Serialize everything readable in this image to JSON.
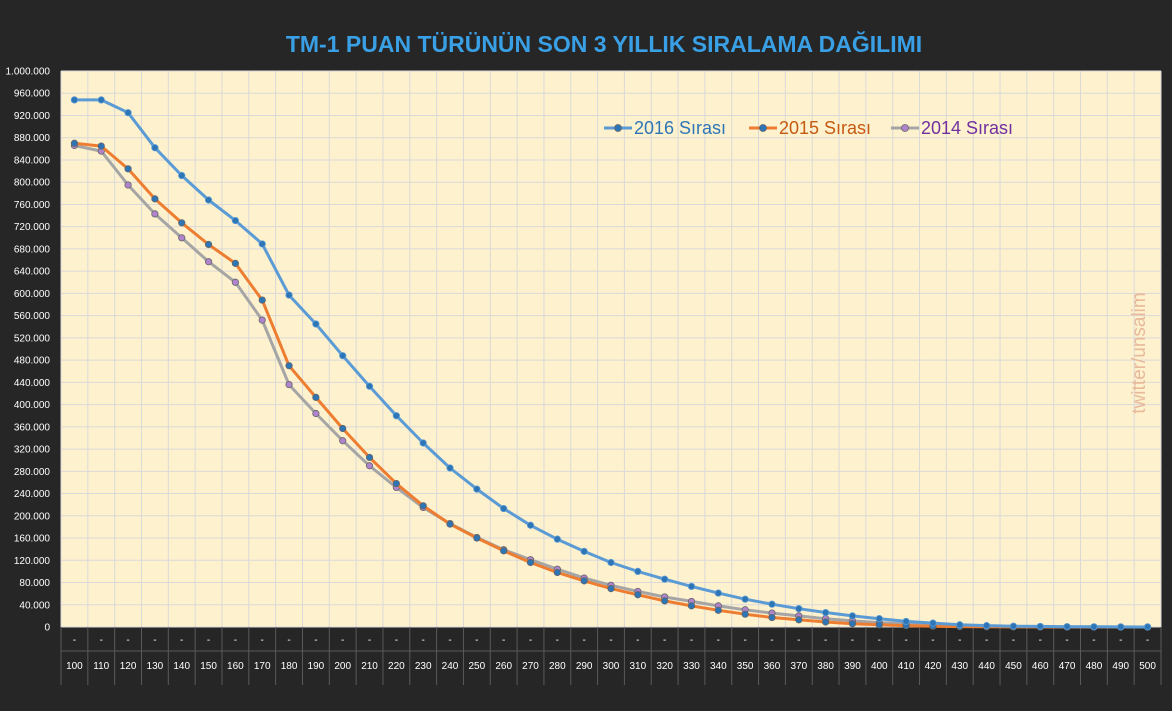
{
  "chart_data": {
    "type": "line",
    "title": "TM-1 PUAN TÜRÜNÜN SON 3 YILLIK SIRALAMA DAĞILIMI",
    "watermark": "twitter/unsalim",
    "x_placeholder": "-",
    "categories": [
      "100",
      "110",
      "120",
      "130",
      "140",
      "150",
      "160",
      "170",
      "180",
      "190",
      "200",
      "210",
      "220",
      "230",
      "240",
      "250",
      "260",
      "270",
      "280",
      "290",
      "300",
      "310",
      "320",
      "330",
      "340",
      "350",
      "360",
      "370",
      "380",
      "390",
      "400",
      "410",
      "420",
      "430",
      "440",
      "450",
      "460",
      "470",
      "480",
      "490",
      "500"
    ],
    "ylim": [
      0,
      1000000
    ],
    "ytick_step": 40000,
    "y_ticks": [
      "0",
      "40.000",
      "80.000",
      "120.000",
      "160.000",
      "200.000",
      "240.000",
      "280.000",
      "320.000",
      "360.000",
      "400.000",
      "440.000",
      "480.000",
      "520.000",
      "560.000",
      "600.000",
      "640.000",
      "680.000",
      "720.000",
      "760.000",
      "800.000",
      "840.000",
      "880.000",
      "920.000",
      "960.000",
      "1.000.000"
    ],
    "grid": true,
    "legend_position": "top-right",
    "series": [
      {
        "name": "2016 Sırası",
        "color": "#5B9BD5",
        "marker_color": "#2E75B6",
        "label_color": "#2E75B6",
        "values": [
          948000,
          948000,
          925000,
          862000,
          812000,
          768000,
          731000,
          689000,
          597000,
          545000,
          488000,
          433000,
          380000,
          331000,
          286000,
          248000,
          213000,
          183000,
          158000,
          136000,
          116000,
          100000,
          86000,
          73000,
          61000,
          50000,
          41000,
          33000,
          26000,
          20000,
          15000,
          10000,
          7000,
          4000,
          2500,
          1500,
          1000,
          600,
          300,
          150,
          50
        ]
      },
      {
        "name": "2015 Sırası",
        "color": "#ED7D31",
        "marker_color": "#2E75B6",
        "label_color": "#C55A11",
        "values": [
          870000,
          865000,
          824000,
          770000,
          727000,
          688000,
          654000,
          588000,
          470000,
          413000,
          357000,
          305000,
          258000,
          218000,
          185000,
          160000,
          137000,
          116000,
          98000,
          83000,
          69000,
          58000,
          47000,
          38000,
          30000,
          23000,
          17000,
          13000,
          9000,
          6000,
          4000,
          2500,
          1500,
          800,
          400,
          200,
          100,
          50,
          20,
          10,
          0
        ]
      },
      {
        "name": "2014 Sırası",
        "color": "#A5A5A5",
        "marker_color": "#B084CC",
        "label_color": "#7030A0",
        "values": [
          866000,
          856000,
          795000,
          743000,
          700000,
          657000,
          620000,
          552000,
          436000,
          384000,
          335000,
          290000,
          251000,
          215000,
          186000,
          161000,
          139000,
          121000,
          104000,
          88000,
          75000,
          64000,
          54000,
          46000,
          38000,
          31000,
          25000,
          20000,
          15000,
          11000,
          8000,
          6000,
          4000,
          2500,
          1500,
          800,
          400,
          200,
          100,
          50,
          20
        ]
      }
    ]
  }
}
